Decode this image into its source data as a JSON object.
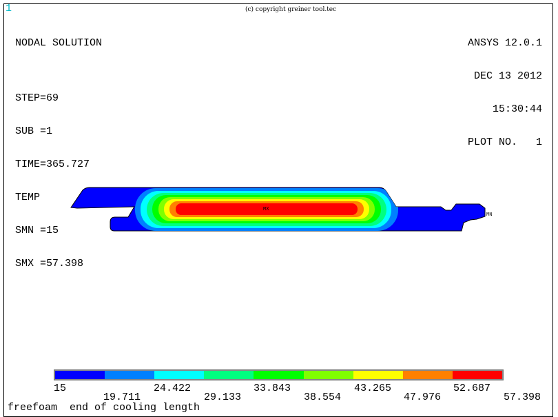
{
  "window_number": "1",
  "copyright": "(c) copyright greiner tool.tec",
  "info_left": [
    "NODAL SOLUTION",
    "",
    "STEP=69",
    "SUB =1",
    "TIME=365.727",
    "TEMP",
    "SMN =15",
    "SMX =57.398"
  ],
  "info_right": [
    "ANSYS 12.0.1",
    "DEC 13 2012",
    "15:30:44",
    "PLOT NO.   1"
  ],
  "markers": {
    "max": "MX",
    "min": "MN"
  },
  "legend": {
    "colors": [
      "#0000ff",
      "#0080ff",
      "#00ffff",
      "#00ff80",
      "#00ff00",
      "#80ff00",
      "#ffff00",
      "#ff8000",
      "#ff0000"
    ],
    "labels": [
      "15",
      "19.711",
      "24.422",
      "29.133",
      "33.843",
      "38.554",
      "43.265",
      "47.976",
      "52.687",
      "57.398"
    ]
  },
  "caption": "freefoam  end of cooling length"
}
